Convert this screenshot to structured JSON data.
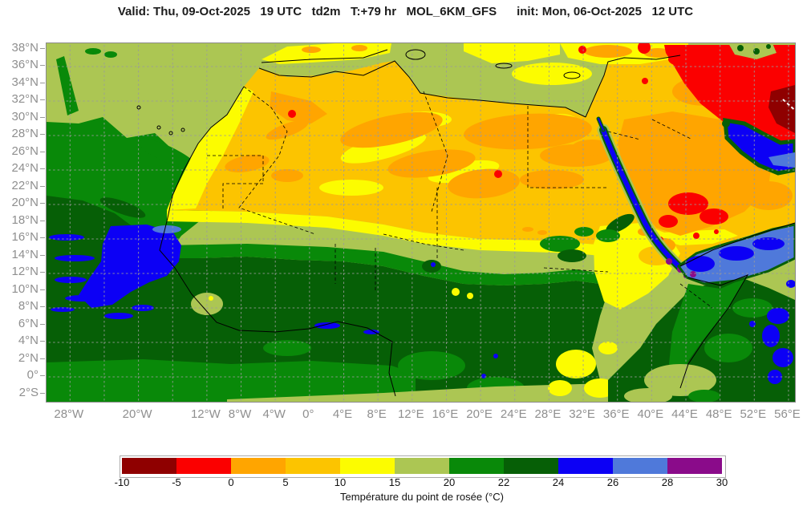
{
  "title": "Valid: Thu, 09-Oct-2025   19 UTC   td2m   T:+79 hr   MOL_6KM_GFS      init: Mon, 06-Oct-2025   12 UTC",
  "axes": {
    "lat": [
      {
        "value": 38,
        "label": "38°N"
      },
      {
        "value": 36,
        "label": "36°N"
      },
      {
        "value": 34,
        "label": "34°N"
      },
      {
        "value": 32,
        "label": "32°N"
      },
      {
        "value": 30,
        "label": "30°N"
      },
      {
        "value": 28,
        "label": "28°N"
      },
      {
        "value": 26,
        "label": "26°N"
      },
      {
        "value": 24,
        "label": "24°N"
      },
      {
        "value": 22,
        "label": "22°N"
      },
      {
        "value": 20,
        "label": "20°N"
      },
      {
        "value": 18,
        "label": "18°N"
      },
      {
        "value": 16,
        "label": "16°N"
      },
      {
        "value": 14,
        "label": "14°N"
      },
      {
        "value": 12,
        "label": "12°N"
      },
      {
        "value": 10,
        "label": "10°N"
      },
      {
        "value": 8,
        "label": "8°N"
      },
      {
        "value": 6,
        "label": "6°N"
      },
      {
        "value": 4,
        "label": "4°N"
      },
      {
        "value": 2,
        "label": "2°N"
      },
      {
        "value": 0,
        "label": "0°"
      },
      {
        "value": -2,
        "label": "2°S"
      }
    ],
    "lon": [
      {
        "value": -28,
        "label": "28°W"
      },
      {
        "value": -20,
        "label": "20°W"
      },
      {
        "value": -12,
        "label": "12°W"
      },
      {
        "value": -8,
        "label": "8°W"
      },
      {
        "value": -4,
        "label": "4°W"
      },
      {
        "value": 0,
        "label": "0°"
      },
      {
        "value": 4,
        "label": "4°E"
      },
      {
        "value": 8,
        "label": "8°E"
      },
      {
        "value": 12,
        "label": "12°E"
      },
      {
        "value": 16,
        "label": "16°E"
      },
      {
        "value": 20,
        "label": "20°E"
      },
      {
        "value": 24,
        "label": "24°E"
      },
      {
        "value": 28,
        "label": "28°E"
      },
      {
        "value": 32,
        "label": "32°E"
      },
      {
        "value": 36,
        "label": "36°E"
      },
      {
        "value": 40,
        "label": "40°E"
      },
      {
        "value": 44,
        "label": "44°E"
      },
      {
        "value": 48,
        "label": "48°E"
      },
      {
        "value": 52,
        "label": "52°E"
      },
      {
        "value": 56,
        "label": "56°E"
      }
    ]
  },
  "colorbar": {
    "ticks": [
      "-10",
      "-5",
      "0",
      "5",
      "10",
      "15",
      "20",
      "22",
      "24",
      "26",
      "28",
      "30"
    ],
    "colors": [
      "#8F0000",
      "#FB0000",
      "#FFA500",
      "#FCC400",
      "#FCFC00",
      "#ACC653",
      "#098909",
      "#065F06",
      "#0C00F5",
      "#4F79DA",
      "#8A0B8A"
    ],
    "caption": "Température du point de rosée (°C)",
    "units": "°C",
    "variable": "Température du point de rosée"
  },
  "palette": {
    "dark_red": "#8F0000",
    "red": "#FB0000",
    "orange": "#FFA500",
    "gold": "#FCC400",
    "yellow": "#FCFC00",
    "olive": "#ACC653",
    "green": "#098909",
    "dark_green": "#065F06",
    "blue": "#0C00F5",
    "cornflower": "#4F79DA",
    "purple": "#8A0B8A"
  }
}
